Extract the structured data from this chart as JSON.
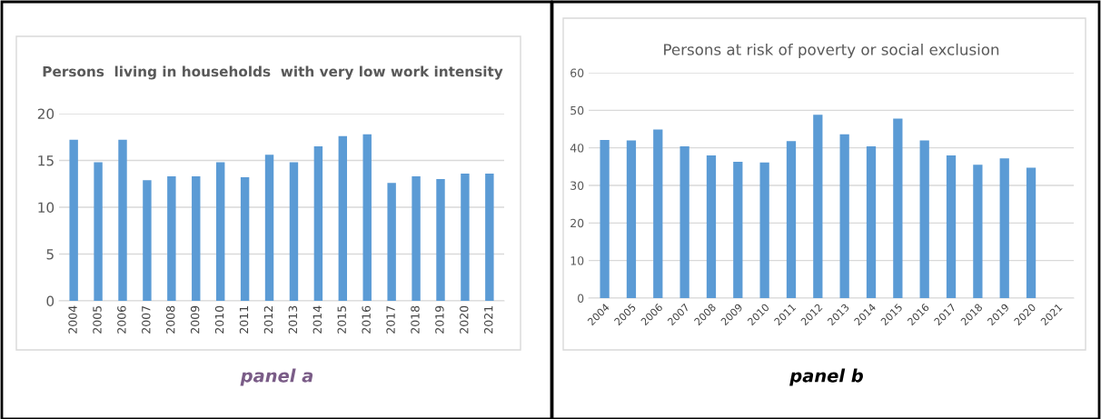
{
  "chart_data": [
    {
      "type": "bar",
      "title": "Persons  living in households  with very low work intensity",
      "categories": [
        "2004",
        "2005",
        "2006",
        "2007",
        "2008",
        "2009",
        "2010",
        "2011",
        "2012",
        "2013",
        "2014",
        "2015",
        "2016",
        "2017",
        "2018",
        "2019",
        "2020",
        "2021"
      ],
      "series": [
        {
          "color": "#5b9bd5",
          "values": [
            17.2,
            14.8,
            17.2,
            12.9,
            13.3,
            13.3,
            14.8,
            13.2,
            15.6,
            14.8,
            16.5,
            17.6,
            17.8,
            12.6,
            13.3,
            13.0,
            13.6,
            13.6
          ]
        }
      ],
      "ylim": [
        0,
        20
      ],
      "yticks": [
        0,
        5,
        10,
        15,
        20
      ],
      "grid": "y",
      "annotations": [
        "panel a"
      ]
    },
    {
      "type": "bar",
      "title": "Persons at risk of poverty or social exclusion",
      "categories": [
        "2004",
        "2005",
        "2006",
        "2007",
        "2008",
        "2009",
        "2010",
        "2011",
        "2012",
        "2013",
        "2014",
        "2015",
        "2016",
        "2017",
        "2018",
        "2019",
        "2020",
        "2021"
      ],
      "series": [
        {
          "color": "#5b9bd5",
          "values": [
            42.1,
            42.0,
            44.9,
            40.4,
            38.0,
            36.3,
            36.1,
            41.8,
            48.8,
            43.6,
            40.4,
            47.8,
            42.0,
            38.0,
            35.5,
            37.2,
            34.7,
            null
          ]
        }
      ],
      "ylim": [
        0,
        60
      ],
      "yticks": [
        0,
        10,
        20,
        30,
        40,
        50,
        60
      ],
      "grid": "y",
      "annotations": [
        "panel b"
      ]
    }
  ]
}
